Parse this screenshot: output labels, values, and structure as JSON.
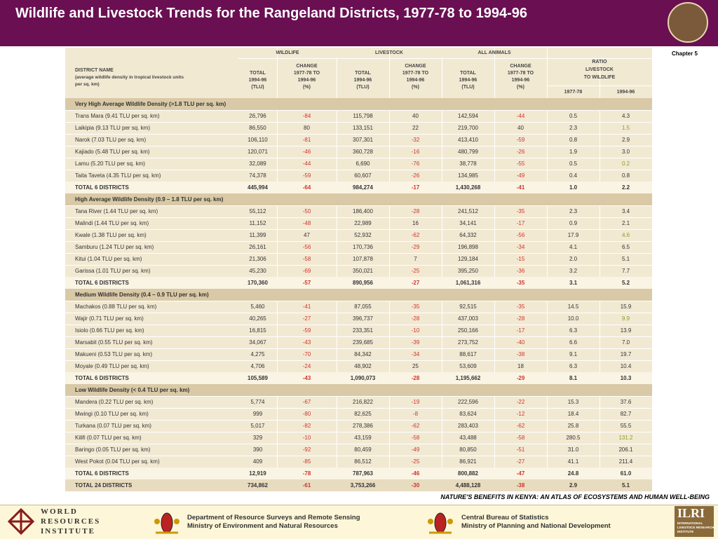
{
  "header": {
    "title": "Wildlife and Livestock Trends for the Rangeland Districts, 1977-78 to 1994-96",
    "chapter": "Chapter 5"
  },
  "table": {
    "groups": [
      "WILDLIFE",
      "LIVESTOCK",
      "ALL ANIMALS"
    ],
    "district_header": [
      "DISTRICT NAME",
      "(average wildlife density in tropical livestock units",
      "per sq. km)"
    ],
    "total_header": [
      "TOTAL",
      "1994-96",
      "(TLU)"
    ],
    "change_header": [
      "CHANGE",
      "1977-78 TO",
      "1994-96",
      "(%)"
    ],
    "ratio_header": [
      "RATIO",
      "LIVESTOCK",
      "TO WILDLIFE"
    ],
    "ratio_years": [
      "1977-78",
      "1994-96"
    ],
    "sections": [
      {
        "name": "Very High Average Wildlife Density (>1.8 TLU per sq. km)",
        "rows": [
          [
            "Trans Mara (9.41 TLU per sq. km)",
            "26,796",
            "-84",
            "115,798",
            "40",
            "142,594",
            "-44",
            "0.5",
            "4.3"
          ],
          [
            "Laikipia (9.13 TLU per sq. km)",
            "86,550",
            "80",
            "133,151",
            "22",
            "219,700",
            "40",
            "2.3",
            "1.5"
          ],
          [
            "Narok (7.03 TLU per sq. km)",
            "106,110",
            "-81",
            "307,301",
            "-32",
            "413,410",
            "-59",
            "0.8",
            "2.9"
          ],
          [
            "Kajiado (5.48 TLU per sq. km)",
            "120,071",
            "-46",
            "360,728",
            "-16",
            "480,799",
            "-26",
            "1.9",
            "3.0"
          ],
          [
            "Lamu (5.20 TLU per sq. km)",
            "32,089",
            "-44",
            "6,690",
            "-76",
            "38,778",
            "-55",
            "0.5",
            "0.2"
          ],
          [
            "Taita Taveta (4.35 TLU per sq. km)",
            "74,378",
            "-59",
            "60,607",
            "-26",
            "134,985",
            "-49",
            "0.4",
            "0.8"
          ]
        ],
        "total": [
          "TOTAL 6 DISTRICTS",
          "445,994",
          "-64",
          "984,274",
          "-17",
          "1,430,268",
          "-41",
          "1.0",
          "2.2"
        ]
      },
      {
        "name": "High Average Wildlife Density (0.9 – 1.8 TLU per sq. km)",
        "rows": [
          [
            "Tana River (1.44 TLU per sq. km)",
            "55,112",
            "-50",
            "186,400",
            "-28",
            "241,512",
            "-35",
            "2.3",
            "3.4"
          ],
          [
            "Malindi (1.44 TLU per sq. km)",
            "11,152",
            "-48",
            "22,989",
            "16",
            "34,141",
            "-17",
            "0.9",
            "2.1"
          ],
          [
            "Kwale (1.38 TLU per sq. km)",
            "11,399",
            "47",
            "52,932",
            "-62",
            "64,332",
            "-56",
            "17.9",
            "4.6"
          ],
          [
            "Samburu (1.24 TLU per sq. km)",
            "26,161",
            "-56",
            "170,736",
            "-29",
            "196,898",
            "-34",
            "4.1",
            "6.5"
          ],
          [
            "Kitui (1.04 TLU per sq. km)",
            "21,306",
            "-58",
            "107,878",
            "7",
            "129,184",
            "-15",
            "2.0",
            "5.1"
          ],
          [
            "Garissa (1.01 TLU per sq. km)",
            "45,230",
            "-69",
            "350,021",
            "-25",
            "395,250",
            "-36",
            "3.2",
            "7.7"
          ]
        ],
        "total": [
          "TOTAL 6 DISTRICTS",
          "170,360",
          "-57",
          "890,956",
          "-27",
          "1,061,316",
          "-35",
          "3.1",
          "5.2"
        ]
      },
      {
        "name": "Medium Wildlife Density (0.4 – 0.9 TLU per sq. km)",
        "rows": [
          [
            "Machakos (0.88 TLU per sq. km)",
            "5,460",
            "-41",
            "87,055",
            "-35",
            "92,515",
            "-35",
            "14.5",
            "15.9"
          ],
          [
            "Wajir (0.71 TLU per sq. km)",
            "40,265",
            "-27",
            "396,737",
            "-28",
            "437,003",
            "-28",
            "10.0",
            "9.9"
          ],
          [
            "Isiolo (0.66 TLU per sq. km)",
            "16,815",
            "-59",
            "233,351",
            "-10",
            "250,166",
            "-17",
            "6.3",
            "13.9"
          ],
          [
            "Marsabit (0.55 TLU per sq. km)",
            "34,067",
            "-43",
            "239,685",
            "-39",
            "273,752",
            "-40",
            "6.6",
            "7.0"
          ],
          [
            "Makueni (0.53 TLU per sq. km)",
            "4,275",
            "-70",
            "84,342",
            "-34",
            "88,617",
            "-38",
            "9.1",
            "19.7"
          ],
          [
            "Moyale (0.49 TLU per sq. km)",
            "4,706",
            "-24",
            "48,902",
            "25",
            "53,609",
            "18",
            "6.3",
            "10.4"
          ]
        ],
        "total": [
          "TOTAL 6 DISTRICTS",
          "105,589",
          "-43",
          "1,090,073",
          "-28",
          "1,195,662",
          "-29",
          "8.1",
          "10.3"
        ]
      },
      {
        "name": "Low Wildlife Density (< 0.4 TLU per sq. km)",
        "rows": [
          [
            "Mandera (0.22 TLU per sq. km)",
            "5,774",
            "-67",
            "216,822",
            "-19",
            "222,596",
            "-22",
            "15.3",
            "37.6"
          ],
          [
            "Mwingi (0.10 TLU per sq. km)",
            "999",
            "-80",
            "82,625",
            "-8",
            "83,624",
            "-12",
            "18.4",
            "82.7"
          ],
          [
            "Turkana (0.07 TLU per sq. km)",
            "5,017",
            "-82",
            "278,386",
            "-62",
            "283,403",
            "-62",
            "25.8",
            "55.5"
          ],
          [
            "Kilifi (0.07 TLU per sq. km)",
            "329",
            "-10",
            "43,159",
            "-58",
            "43,488",
            "-58",
            "280.5",
            "131.2"
          ],
          [
            "Baringo (0.05 TLU per sq. km)",
            "390",
            "-92",
            "80,459",
            "-49",
            "80,850",
            "-51",
            "31.0",
            "206.1"
          ],
          [
            "West Pokot (0.04 TLU per sq. km)",
            "409",
            "-85",
            "86,512",
            "-25",
            "86,921",
            "-27",
            "41.1",
            "211.4"
          ]
        ],
        "total": [
          "TOTAL 6 DISTRICTS",
          "12,919",
          "-78",
          "787,963",
          "-46",
          "800,882",
          "-47",
          "24.8",
          "61.0"
        ]
      }
    ],
    "grand_total": [
      "TOTAL 24 DISTRICTS",
      "734,862",
      "-61",
      "3,753,266",
      "-30",
      "4,488,128",
      "-38",
      "2.9",
      "5.1"
    ]
  },
  "footer": {
    "source": "NATURE'S BENEFITS IN KENYA: AN ATLAS OF ECOSYSTEMS AND HUMAN WELL-BEING",
    "wri": [
      "WORLD",
      "RESOURCES",
      "INSTITUTE"
    ],
    "dept1": [
      "Department of Resource Surveys and Remote Sensing",
      "Ministry of Environment and Natural Resources"
    ],
    "dept2": [
      "Central Bureau of Statistics",
      "Ministry of Planning and National Development"
    ],
    "ilri": "ILRI",
    "ilri_sub": [
      "INTERNATIONAL",
      "LIVESTOCK RESEARCH",
      "INSTITUTE"
    ]
  }
}
